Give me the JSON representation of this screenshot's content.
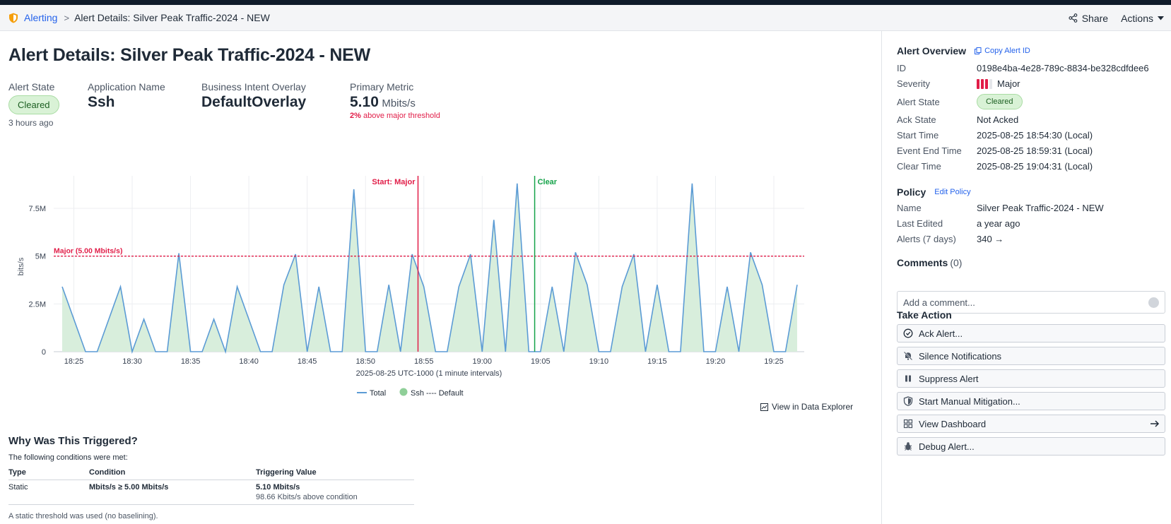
{
  "breadcrumb": {
    "root": "Alerting",
    "separator": ">",
    "current": "Alert Details: Silver Peak Traffic-2024 - NEW"
  },
  "header_actions": {
    "share": "Share",
    "actions": "Actions"
  },
  "page": {
    "title": "Alert Details: Silver Peak Traffic-2024 - NEW"
  },
  "stats": {
    "alert_state": {
      "label": "Alert State",
      "value": "Cleared",
      "time": "3 hours ago"
    },
    "application": {
      "label": "Application Name",
      "value": "Ssh"
    },
    "overlay": {
      "label": "Business Intent Overlay",
      "value": "DefaultOverlay"
    },
    "metric": {
      "label": "Primary Metric",
      "value": "5.10",
      "unit": "Mbits/s",
      "pct": "2%",
      "note": "above major threshold"
    }
  },
  "chart_data": {
    "type": "area",
    "ylabel": "bits/s",
    "xlabel": "2025-08-25 UTC-1000 (1 minute intervals)",
    "ylim": [
      0,
      9200000
    ],
    "yticks": [
      0,
      2500000,
      5000000,
      7500000
    ],
    "ytick_labels": [
      "0",
      "2.5M",
      "5M",
      "7.5M"
    ],
    "x_start": "18:24",
    "x_interval_minutes": 1,
    "xtick_labels": [
      "18:25",
      "18:30",
      "18:35",
      "18:40",
      "18:45",
      "18:50",
      "18:55",
      "19:00",
      "19:05",
      "19:10",
      "19:15",
      "19:20",
      "19:25"
    ],
    "threshold": {
      "value": 5000000,
      "label": "Major (5.00 Mbits/s)",
      "color": "#e11d48"
    },
    "markers": [
      {
        "label": "Start: Major",
        "time": "18:54.5",
        "color": "#e11d48"
      },
      {
        "label": "Clear",
        "time": "19:04.5",
        "color": "#16a34a"
      }
    ],
    "series": [
      {
        "name": "Total",
        "color": "#5b9bd5",
        "values": [
          3.4,
          1.7,
          0,
          0,
          1.7,
          3.4,
          0,
          1.7,
          0,
          0,
          5.15,
          0,
          0,
          1.7,
          0,
          3.4,
          1.7,
          0,
          0,
          3.5,
          5.1,
          0,
          3.4,
          0,
          0,
          8.5,
          0,
          0,
          3.5,
          0,
          5.1,
          3.4,
          0,
          0,
          3.4,
          5.1,
          0,
          6.9,
          0,
          8.8,
          0,
          0,
          3.4,
          0,
          5.2,
          3.5,
          0,
          0,
          3.4,
          5.1,
          0,
          3.5,
          0,
          0,
          8.8,
          0,
          0,
          3.4,
          0,
          5.2,
          3.5,
          0,
          0,
          3.5
        ]
      },
      {
        "name": "Ssh ---- Default",
        "color": "#8fcf98"
      }
    ],
    "value_unit_multiplier": 1000000
  },
  "view_explorer": "View in Data Explorer",
  "why": {
    "title": "Why Was This Triggered?",
    "subtitle": "The following conditions were met:",
    "headers": [
      "Type",
      "Condition",
      "Triggering Value"
    ],
    "row": {
      "type": "Static",
      "condition": "Mbits/s ≥ 5.00 Mbits/s",
      "value": "5.10 Mbits/s",
      "value_note": "98.66 Kbits/s above condition"
    },
    "footer": "A static threshold was used (no baselining)."
  },
  "overview": {
    "title": "Alert Overview",
    "copy_label": "Copy Alert ID",
    "rows": {
      "id": {
        "label": "ID",
        "value": "0198e4ba-4e28-789c-8834-be328cdfdee6"
      },
      "severity": {
        "label": "Severity",
        "value": "Major"
      },
      "state": {
        "label": "Alert State",
        "value": "Cleared"
      },
      "ack": {
        "label": "Ack State",
        "value": "Not Acked"
      },
      "start": {
        "label": "Start Time",
        "value": "2025-08-25 18:54:30 (Local)"
      },
      "end": {
        "label": "Event End Time",
        "value": "2025-08-25 18:59:31 (Local)"
      },
      "clear": {
        "label": "Clear Time",
        "value": "2025-08-25 19:04:31 (Local)"
      }
    }
  },
  "policy": {
    "title": "Policy",
    "edit_label": "Edit Policy",
    "rows": {
      "name": {
        "label": "Name",
        "value": "Silver Peak Traffic-2024 - NEW"
      },
      "edited": {
        "label": "Last Edited",
        "value": "a year ago"
      },
      "alerts": {
        "label": "Alerts (7 days)",
        "value": "340 →"
      }
    }
  },
  "comments": {
    "title": "Comments",
    "count": "(0)",
    "placeholder": "Add a comment..."
  },
  "take_action": {
    "title": "Take Action",
    "buttons": {
      "ack": "Ack Alert...",
      "silence": "Silence Notifications",
      "suppress": "Suppress Alert",
      "mitigation": "Start Manual Mitigation...",
      "dashboard": "View Dashboard",
      "debug": "Debug Alert..."
    }
  }
}
